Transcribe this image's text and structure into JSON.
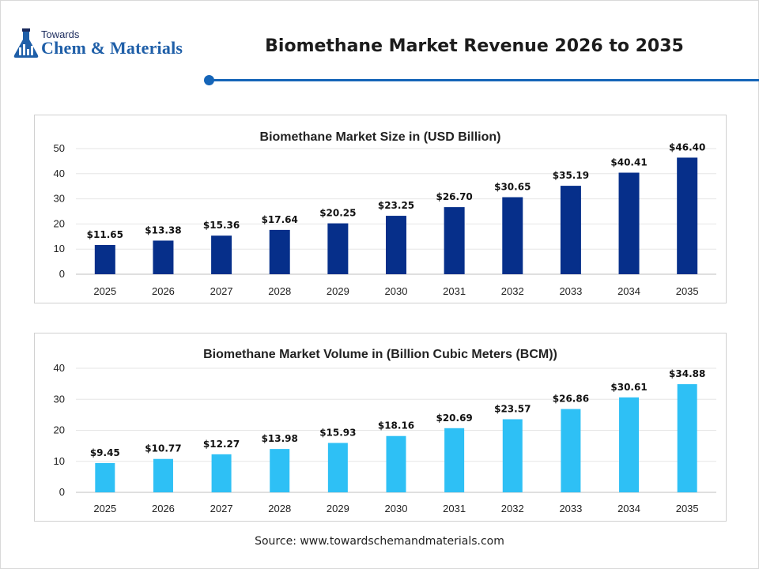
{
  "header": {
    "logo_small": "Towards",
    "logo_brand": "Chem & Materials",
    "title": "Biomethane Market Revenue 2026 to 2035"
  },
  "source": "Source: www.towardschemandmaterials.com",
  "colors": {
    "accent": "#1565b8",
    "series_revenue": "#062f8a",
    "series_volume": "#2ec0f5"
  },
  "chart_data": [
    {
      "type": "bar",
      "title": "Biomethane Market Size in (USD Billion)",
      "categories": [
        "2025",
        "2026",
        "2027",
        "2028",
        "2029",
        "2030",
        "2031",
        "2032",
        "2033",
        "2034",
        "2035"
      ],
      "values": [
        11.65,
        13.38,
        15.36,
        17.64,
        20.25,
        23.25,
        26.7,
        30.65,
        35.19,
        40.41,
        46.4
      ],
      "labels": [
        "$11.65",
        "$13.38",
        "$15.36",
        "$17.64",
        "$20.25",
        "$23.25",
        "$26.70",
        "$30.65",
        "$35.19",
        "$40.41",
        "$46.40"
      ],
      "ylim": [
        0,
        50
      ],
      "yticks": [
        0,
        10,
        20,
        30,
        40,
        50
      ],
      "grid": true,
      "color": "#062f8a"
    },
    {
      "type": "bar",
      "title": "Biomethane Market Volume in (Billion Cubic Meters (BCM))",
      "categories": [
        "2025",
        "2026",
        "2027",
        "2028",
        "2029",
        "2030",
        "2031",
        "2032",
        "2033",
        "2034",
        "2035"
      ],
      "values": [
        9.45,
        10.77,
        12.27,
        13.98,
        15.93,
        18.16,
        20.69,
        23.57,
        26.86,
        30.61,
        34.88
      ],
      "labels": [
        "$9.45",
        "$10.77",
        "$12.27",
        "$13.98",
        "$15.93",
        "$18.16",
        "$20.69",
        "$23.57",
        "$26.86",
        "$30.61",
        "$34.88"
      ],
      "ylim": [
        0,
        40
      ],
      "yticks": [
        0,
        10,
        20,
        30,
        40
      ],
      "grid": true,
      "color": "#2ec0f5"
    }
  ]
}
